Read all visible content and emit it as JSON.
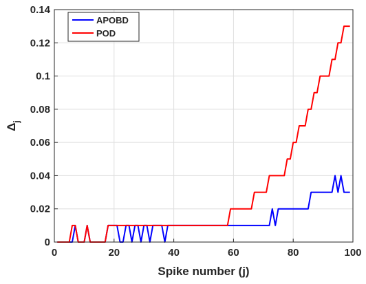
{
  "chart_data": {
    "type": "line",
    "title": "",
    "xlabel": "Spike number (j)",
    "ylabel": "Δ",
    "ylabel_subscript": "j",
    "xlim": [
      0,
      100
    ],
    "ylim": [
      0,
      0.14
    ],
    "xticks": [
      0,
      20,
      40,
      60,
      80,
      100
    ],
    "yticks": [
      0,
      0.02,
      0.04,
      0.06,
      0.08,
      0.1,
      0.12,
      0.14
    ],
    "xtick_labels": [
      "0",
      "20",
      "40",
      "60",
      "80",
      "100"
    ],
    "ytick_labels": [
      "0",
      "0.02",
      "0.04",
      "0.06",
      "0.08",
      "0.1",
      "0.12",
      "0.14"
    ],
    "grid": true,
    "legend_position": "top-left",
    "series": [
      {
        "name": "APOBD",
        "color": "#0000ff",
        "x": [
          1,
          6,
          7,
          8,
          9,
          10,
          11,
          12,
          13,
          17,
          18,
          19,
          20,
          21,
          22,
          23,
          24,
          25,
          26,
          27,
          28,
          29,
          30,
          31,
          32,
          33,
          34,
          35,
          36,
          37,
          38,
          39,
          72,
          73,
          74,
          75,
          76,
          77,
          85,
          86,
          93,
          94,
          95,
          96,
          97,
          98,
          99
        ],
        "values": [
          0,
          0,
          0.01,
          0,
          0,
          0,
          0.01,
          0,
          0,
          0,
          0.01,
          0.01,
          0.01,
          0.01,
          0,
          0,
          0.01,
          0.01,
          0,
          0.01,
          0.01,
          0,
          0.01,
          0.01,
          0,
          0.01,
          0.01,
          0.01,
          0.01,
          0,
          0.01,
          0.01,
          0.01,
          0.02,
          0.01,
          0.02,
          0.02,
          0.02,
          0.02,
          0.03,
          0.03,
          0.04,
          0.03,
          0.04,
          0.03,
          0.03,
          0.03
        ]
      },
      {
        "name": "POD",
        "color": "#ff0000",
        "x": [
          1,
          5,
          6,
          7,
          8,
          9,
          10,
          11,
          12,
          17,
          18,
          23,
          24,
          58,
          59,
          66,
          67,
          71,
          72,
          77,
          78,
          79,
          80,
          81,
          82,
          84,
          85,
          86,
          87,
          88,
          89,
          90,
          91,
          92,
          93,
          94,
          95,
          96,
          97,
          98,
          99
        ],
        "values": [
          0,
          0,
          0.01,
          0.01,
          0,
          0,
          0,
          0.01,
          0,
          0,
          0.01,
          0.01,
          0.01,
          0.01,
          0.02,
          0.02,
          0.03,
          0.03,
          0.04,
          0.04,
          0.05,
          0.05,
          0.06,
          0.06,
          0.07,
          0.07,
          0.08,
          0.08,
          0.09,
          0.09,
          0.1,
          0.1,
          0.1,
          0.1,
          0.11,
          0.11,
          0.12,
          0.12,
          0.13,
          0.13,
          0.13
        ]
      }
    ]
  }
}
